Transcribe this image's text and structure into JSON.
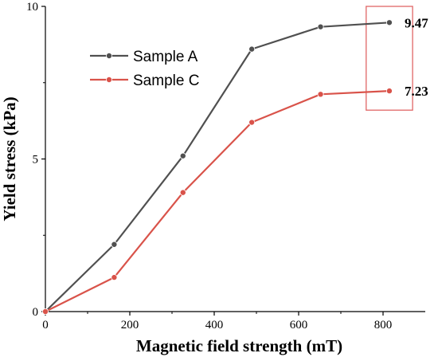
{
  "chart_data": {
    "type": "line",
    "xlabel": "Magnetic field strength (mT)",
    "ylabel": "Yield stress (kPa)",
    "xlim": [
      0,
      900
    ],
    "ylim": [
      0,
      10
    ],
    "x_ticks": [
      0,
      200,
      400,
      600,
      800
    ],
    "y_ticks": [
      0,
      5,
      10
    ],
    "x_tick_labels": [
      "0",
      "200",
      "400",
      "600",
      "800"
    ],
    "y_tick_labels": [
      "0",
      "5",
      "10"
    ],
    "grid": false,
    "legend_position": "top-left",
    "series": [
      {
        "name": "Sample A",
        "color": "#505050",
        "x": [
          0,
          163,
          326,
          489,
          652,
          815
        ],
        "y": [
          0,
          2.2,
          5.1,
          8.6,
          9.33,
          9.47
        ]
      },
      {
        "name": "Sample C",
        "color": "#d9534a",
        "x": [
          0,
          163,
          326,
          489,
          652,
          815
        ],
        "y": [
          0,
          1.12,
          3.9,
          6.2,
          7.12,
          7.23
        ]
      }
    ],
    "annotations": [
      {
        "text": "9.47",
        "x": 815,
        "y": 9.47
      },
      {
        "text": "7.23",
        "x": 815,
        "y": 7.23
      }
    ],
    "highlight_box": {
      "x_from": 760,
      "x_to": 870,
      "y_from": 6.6,
      "y_to": 10.0,
      "color": "#e06666"
    }
  }
}
